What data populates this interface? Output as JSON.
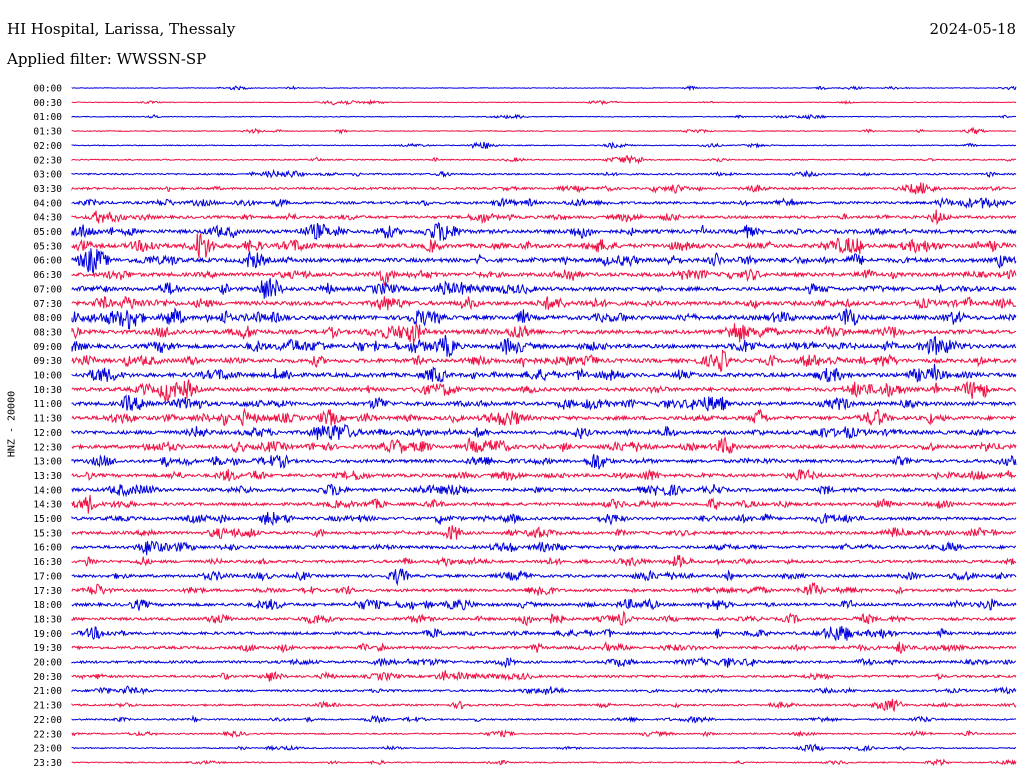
{
  "header": {
    "station": "HI Hospital, Larissa, Thessaly",
    "date": "2024-05-18",
    "filter": "Applied filter: WWSSN-SP"
  },
  "chart_data": {
    "type": "line",
    "title": "HI Hospital, Larissa, Thessaly",
    "subtitle": "Applied filter: WWSSN-SP",
    "ylabel": "HNZ - 20000",
    "row_labels": [
      "00:00",
      "00:30",
      "01:00",
      "01:30",
      "02:00",
      "02:30",
      "03:00",
      "03:30",
      "04:00",
      "04:30",
      "05:00",
      "05:30",
      "06:00",
      "06:30",
      "07:00",
      "07:30",
      "08:00",
      "08:30",
      "09:00",
      "09:30",
      "10:00",
      "10:30",
      "11:00",
      "11:30",
      "12:00",
      "12:30",
      "13:00",
      "13:30",
      "14:00",
      "14:30",
      "15:00",
      "15:30",
      "16:00",
      "16:30",
      "17:00",
      "17:30",
      "18:00",
      "18:30",
      "19:00",
      "19:30",
      "20:00",
      "20:30",
      "21:00",
      "21:30",
      "22:00",
      "22:30",
      "23:00",
      "23:30"
    ],
    "row_colors": [
      "#0000dd",
      "#ee1144"
    ],
    "noise_level": [
      0.6,
      0.6,
      0.7,
      0.7,
      0.8,
      1.0,
      1.4,
      1.8,
      2.2,
      2.4,
      3.2,
      3.4,
      3.4,
      3.2,
      3.2,
      3.4,
      3.6,
      3.4,
      3.4,
      3.4,
      3.4,
      3.2,
      3.2,
      3.2,
      3.2,
      3.0,
      2.8,
      2.8,
      2.8,
      2.6,
      2.6,
      2.6,
      2.6,
      2.4,
      2.4,
      2.4,
      2.6,
      2.4,
      2.4,
      2.4,
      2.2,
      2.0,
      1.8,
      1.6,
      1.4,
      1.2,
      1.0,
      1.0
    ],
    "grid": false
  }
}
